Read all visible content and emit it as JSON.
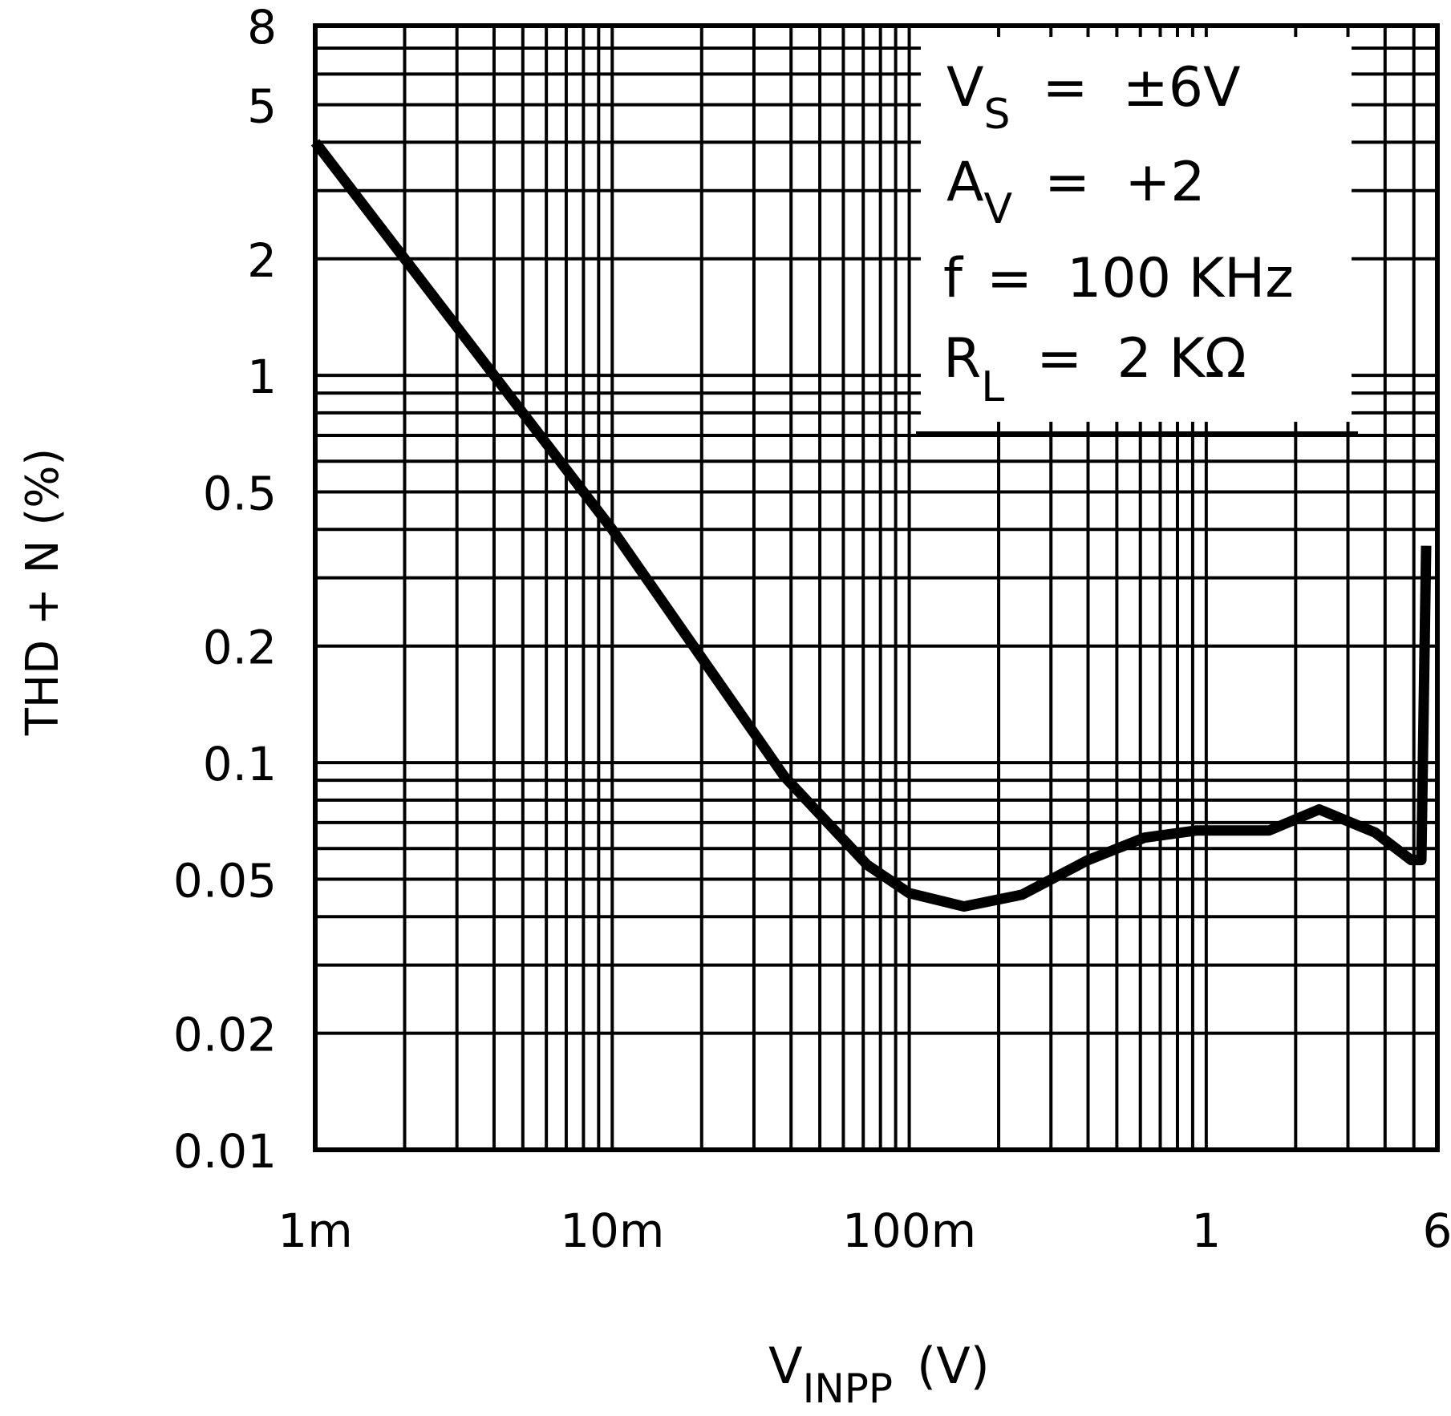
{
  "chart_data": {
    "type": "line",
    "title": "",
    "xlabel": "V",
    "xlabel_sub": "INPP",
    "xlabel_unit": "(V)",
    "ylabel": "THD + N (%)",
    "x_scale": "log",
    "y_scale": "log",
    "xlim": [
      0.001,
      6
    ],
    "ylim": [
      0.01,
      8
    ],
    "grid": true,
    "x_ticks": [
      {
        "value": 0.001,
        "label": "1m"
      },
      {
        "value": 0.01,
        "label": "10m"
      },
      {
        "value": 0.1,
        "label": "100m"
      },
      {
        "value": 1,
        "label": "1"
      },
      {
        "value": 6,
        "label": "6"
      }
    ],
    "y_ticks": [
      {
        "value": 0.01,
        "label": "0.01"
      },
      {
        "value": 0.02,
        "label": "0.02"
      },
      {
        "value": 0.05,
        "label": "0.05"
      },
      {
        "value": 0.1,
        "label": "0.1"
      },
      {
        "value": 0.2,
        "label": "0.2"
      },
      {
        "value": 0.5,
        "label": "0.5"
      },
      {
        "value": 1,
        "label": "1"
      },
      {
        "value": 2,
        "label": "2"
      },
      {
        "value": 5,
        "label": "5"
      },
      {
        "value": 8,
        "label": "8"
      }
    ],
    "series": [
      {
        "color": "#000000",
        "x": [
          0.001,
          0.01,
          0.038,
          0.072,
          0.1,
          0.153,
          0.24,
          0.4,
          0.62,
          0.93,
          1.63,
          2.4,
          3.7,
          4.9,
          5.3,
          5.5
        ],
        "y": [
          4.0,
          0.4,
          0.092,
          0.0545,
          0.046,
          0.0425,
          0.0456,
          0.056,
          0.064,
          0.0668,
          0.0668,
          0.0757,
          0.066,
          0.056,
          0.056,
          0.363
        ]
      }
    ],
    "legend": {
      "placement": "top-right",
      "lines": [
        {
          "main": "V",
          "sub": "S",
          "rest": "=  ±6V"
        },
        {
          "main": "A",
          "sub": "V",
          "rest": "=  +2"
        },
        {
          "main": "f",
          "sub": "",
          "rest": "=  100 KHz"
        },
        {
          "main": "R",
          "sub": "L",
          "rest": "=  2 KΩ"
        }
      ]
    }
  }
}
